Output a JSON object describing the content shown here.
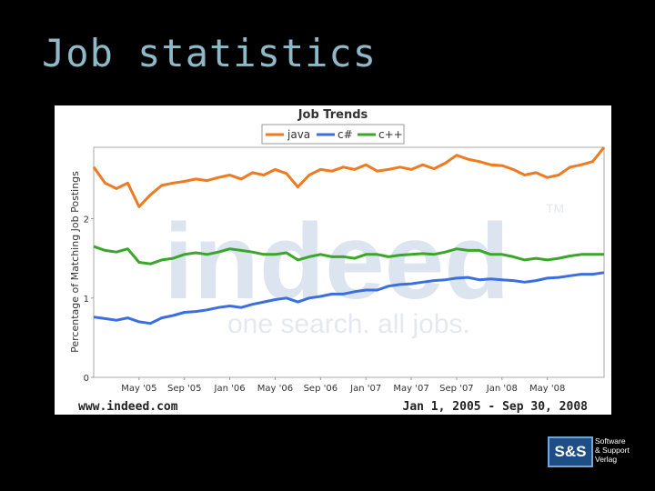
{
  "slide": {
    "title": "Job statistics"
  },
  "watermark": {
    "brand": "indeed",
    "tagline": "one search. all jobs.",
    "tm": "TM"
  },
  "footer": {
    "left": "www.indeed.com",
    "right": "Jan 1, 2005 - Sep 30, 2008"
  },
  "logo": {
    "mark": "S&S",
    "line1": "Software",
    "line2": "& Support",
    "line3": "Verlag"
  },
  "chart_data": {
    "type": "line",
    "title": "Job Trends",
    "xlabel": "",
    "ylabel": "Percentage of Matching Job Postings",
    "ylim": [
      0,
      2.9
    ],
    "xlim": [
      0,
      45
    ],
    "grid": false,
    "legend_position": "top-center",
    "x_tick_labels": [
      "May '05",
      "Sep '05",
      "Jan '06",
      "May '06",
      "Sep '06",
      "Jan '07",
      "May '07",
      "Sep '07",
      "Jan '08",
      "May '08"
    ],
    "x_tick_positions": [
      4,
      8,
      12,
      16,
      20,
      24,
      28,
      32,
      36,
      40
    ],
    "y_ticks": [
      0,
      1,
      2
    ],
    "x": [
      0,
      1,
      2,
      3,
      4,
      5,
      6,
      7,
      8,
      9,
      10,
      11,
      12,
      13,
      14,
      15,
      16,
      17,
      18,
      19,
      20,
      21,
      22,
      23,
      24,
      25,
      26,
      27,
      28,
      29,
      30,
      31,
      32,
      33,
      34,
      35,
      36,
      37,
      38,
      39,
      40,
      41,
      42,
      43,
      44,
      45
    ],
    "series": [
      {
        "name": "java",
        "color": "#f07a20",
        "values": [
          2.65,
          2.45,
          2.38,
          2.45,
          2.15,
          2.3,
          2.42,
          2.45,
          2.47,
          2.5,
          2.48,
          2.52,
          2.55,
          2.5,
          2.58,
          2.55,
          2.62,
          2.57,
          2.4,
          2.55,
          2.62,
          2.6,
          2.65,
          2.62,
          2.68,
          2.6,
          2.62,
          2.65,
          2.62,
          2.68,
          2.63,
          2.7,
          2.8,
          2.75,
          2.72,
          2.68,
          2.67,
          2.62,
          2.55,
          2.58,
          2.52,
          2.55,
          2.65,
          2.68,
          2.72,
          2.9
        ]
      },
      {
        "name": "c#",
        "color": "#3b6fe0",
        "values": [
          0.76,
          0.74,
          0.72,
          0.75,
          0.7,
          0.68,
          0.75,
          0.78,
          0.82,
          0.83,
          0.85,
          0.88,
          0.9,
          0.88,
          0.92,
          0.95,
          0.98,
          1.0,
          0.95,
          1.0,
          1.02,
          1.05,
          1.05,
          1.08,
          1.1,
          1.1,
          1.15,
          1.17,
          1.18,
          1.2,
          1.22,
          1.23,
          1.25,
          1.26,
          1.23,
          1.24,
          1.23,
          1.22,
          1.2,
          1.22,
          1.25,
          1.26,
          1.28,
          1.3,
          1.3,
          1.32
        ]
      },
      {
        "name": "c++",
        "color": "#3aa62a",
        "values": [
          1.65,
          1.6,
          1.58,
          1.62,
          1.45,
          1.43,
          1.48,
          1.5,
          1.55,
          1.57,
          1.55,
          1.58,
          1.62,
          1.6,
          1.58,
          1.55,
          1.55,
          1.57,
          1.48,
          1.52,
          1.55,
          1.52,
          1.52,
          1.5,
          1.55,
          1.55,
          1.52,
          1.54,
          1.55,
          1.56,
          1.55,
          1.58,
          1.62,
          1.6,
          1.6,
          1.55,
          1.55,
          1.52,
          1.48,
          1.5,
          1.48,
          1.5,
          1.53,
          1.55,
          1.55,
          1.55
        ]
      }
    ]
  }
}
